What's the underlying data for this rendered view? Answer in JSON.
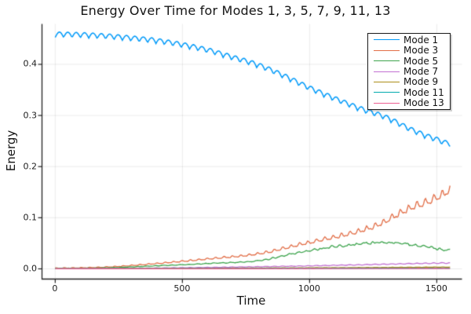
{
  "title": "Energy Over Time for Modes 1, 3, 5, 7, 9, 11, 13",
  "chart_data": {
    "type": "line",
    "title": "Energy Over Time for Modes 1, 3, 5, 7, 9, 11, 13",
    "xlabel": "Time",
    "ylabel": "Energy",
    "xlim": [
      -52,
      1599
    ],
    "ylim": [
      -0.02,
      0.479
    ],
    "xticks": [
      0,
      500,
      1000,
      1500
    ],
    "xtick_labels": [
      "0",
      "500",
      "1000",
      "1500"
    ],
    "yticks": [
      0.0,
      0.1,
      0.2,
      0.3,
      0.4
    ],
    "ytick_labels": [
      "0.0",
      "0.1",
      "0.2",
      "0.3",
      "0.4"
    ],
    "grid": true,
    "grid_color": "rgba(0,0,0,0.08)",
    "axis_color": "#222222",
    "background": "#ffffff",
    "legend_position": "top-right",
    "series": [
      {
        "name": "Mode 1",
        "color": "#009AFA",
        "keyframes": [
          [
            0,
            0.458
          ],
          [
            100,
            0.457
          ],
          [
            200,
            0.4545
          ],
          [
            300,
            0.4505
          ],
          [
            400,
            0.4455
          ],
          [
            500,
            0.4375
          ],
          [
            600,
            0.427
          ],
          [
            700,
            0.4125
          ],
          [
            800,
            0.3975
          ],
          [
            900,
            0.3765
          ],
          [
            1000,
            0.353
          ],
          [
            1100,
            0.332
          ],
          [
            1200,
            0.3125
          ],
          [
            1300,
            0.2955
          ],
          [
            1400,
            0.2715
          ],
          [
            1500,
            0.2525
          ],
          [
            1555,
            0.2435
          ]
        ],
        "osc": {
          "period": 33,
          "amp": 0.0052,
          "amp_rel": 0,
          "shape": "scallop",
          "phase": 0
        },
        "noise_rel": 0
      },
      {
        "name": "Mode 3",
        "color": "#E26E47",
        "keyframes": [
          [
            0,
            0.0015
          ],
          [
            200,
            0.0035
          ],
          [
            400,
            0.0105
          ],
          [
            600,
            0.0195
          ],
          [
            800,
            0.0295
          ],
          [
            1000,
            0.0515
          ],
          [
            1150,
            0.0675
          ],
          [
            1265,
            0.085
          ],
          [
            1390,
            0.117
          ],
          [
            1480,
            0.133
          ],
          [
            1530,
            0.1465
          ],
          [
            1555,
            0.156
          ]
        ],
        "osc": {
          "period": 33,
          "amp": 0.0005,
          "amp_rel": 0.055,
          "shape": "saw",
          "phase": 0.8
        },
        "noise_rel": 0.015
      },
      {
        "name": "Mode 5",
        "color": "#3DA44D",
        "keyframes": [
          [
            0,
            0.0008
          ],
          [
            200,
            0.002
          ],
          [
            400,
            0.006
          ],
          [
            600,
            0.0105
          ],
          [
            800,
            0.016
          ],
          [
            1000,
            0.0355
          ],
          [
            1100,
            0.043
          ],
          [
            1200,
            0.048
          ],
          [
            1280,
            0.0515
          ],
          [
            1350,
            0.0505
          ],
          [
            1450,
            0.0435
          ],
          [
            1555,
            0.0365
          ]
        ],
        "osc": {
          "period": 33,
          "amp": 0.0002,
          "amp_rel": 0.03,
          "shape": "sin",
          "phase": 2.1
        },
        "noise_rel": 0.05
      },
      {
        "name": "Mode 7",
        "color": "#C270D2",
        "keyframes": [
          [
            0,
            0.0004
          ],
          [
            300,
            0.0012
          ],
          [
            600,
            0.0028
          ],
          [
            900,
            0.005
          ],
          [
            1200,
            0.008
          ],
          [
            1555,
            0.0115
          ]
        ],
        "osc": {
          "period": 33,
          "amp": 0.0002,
          "amp_rel": 0.05,
          "shape": "sin",
          "phase": 1.0
        },
        "noise_rel": 0.02
      },
      {
        "name": "Mode 9",
        "color": "#AC8D18",
        "keyframes": [
          [
            0,
            0.0002
          ],
          [
            400,
            0.0008
          ],
          [
            800,
            0.0016
          ],
          [
            1200,
            0.0025
          ],
          [
            1555,
            0.0034
          ]
        ],
        "osc": {
          "period": 33,
          "amp": 0.00015,
          "amp_rel": 0.03,
          "shape": "sin",
          "phase": 0.4
        },
        "noise_rel": 0.02
      },
      {
        "name": "Mode 11",
        "color": "#00AAAE",
        "keyframes": [
          [
            0,
            0.0001
          ],
          [
            500,
            0.0004
          ],
          [
            1000,
            0.0009
          ],
          [
            1555,
            0.0014
          ]
        ],
        "osc": {
          "period": 33,
          "amp": 0.0001,
          "amp_rel": 0,
          "shape": "sin",
          "phase": 0
        },
        "noise_rel": 0
      },
      {
        "name": "Mode 13",
        "color": "#ED5E92",
        "keyframes": [
          [
            0,
            8e-05
          ],
          [
            500,
            0.0002
          ],
          [
            1000,
            0.0004
          ],
          [
            1555,
            0.0007
          ]
        ],
        "osc": {
          "period": 33,
          "amp": 8e-05,
          "amp_rel": 0,
          "shape": "sin",
          "phase": 0
        },
        "noise_rel": 0
      }
    ]
  }
}
